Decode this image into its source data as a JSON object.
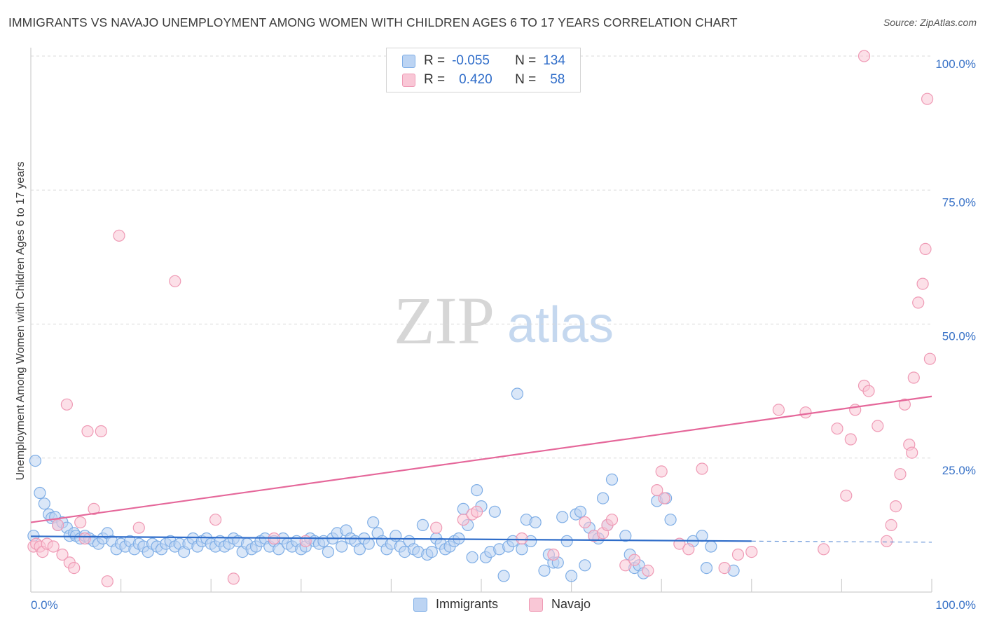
{
  "title": "IMMIGRANTS VS NAVAJO UNEMPLOYMENT AMONG WOMEN WITH CHILDREN AGES 6 TO 17 YEARS CORRELATION CHART",
  "source": "Source: ZipAtlas.com",
  "watermark": {
    "zip": "ZIP",
    "atlas": "atlas"
  },
  "legend_top": {
    "r_label": "R =",
    "n_label": "N =",
    "rows": [
      {
        "swatch": "blue",
        "r": "-0.055",
        "n": "134"
      },
      {
        "swatch": "pink",
        "r": "0.420",
        "n": "58"
      }
    ]
  },
  "legend_bottom": [
    {
      "swatch": "blue",
      "label": "Immigrants"
    },
    {
      "swatch": "pink",
      "label": "Navajo"
    }
  ],
  "colors": {
    "blue_fill": "#bcd4f3",
    "blue_stroke": "#7faee6",
    "blue_line": "#2e6cc9",
    "pink_fill": "#f9c7d6",
    "pink_stroke": "#ef9ab5",
    "pink_line": "#e5679a",
    "axis_text": "#3b74c8",
    "grid": "#d8d8d8"
  },
  "chart_data": {
    "type": "scatter",
    "title": "IMMIGRANTS VS NAVAJO UNEMPLOYMENT AMONG WOMEN WITH CHILDREN AGES 6 TO 17 YEARS CORRELATION CHART",
    "xlabel": "",
    "ylabel": "Unemployment Among Women with Children Ages 6 to 17 years",
    "xlim": [
      0,
      100
    ],
    "ylim": [
      0,
      102
    ],
    "x_tick_labels": [
      {
        "value": 0,
        "label": "0.0%"
      },
      {
        "value": 100,
        "label": "100.0%"
      }
    ],
    "y_tick_labels": [
      {
        "value": 25,
        "label": "25.0%"
      },
      {
        "value": 50,
        "label": "50.0%"
      },
      {
        "value": 75,
        "label": "75.0%"
      },
      {
        "value": 100,
        "label": "100.0%"
      }
    ],
    "x_minor_ticks": [
      10,
      20,
      30,
      40,
      50,
      60,
      70,
      80,
      90
    ],
    "grid": true,
    "series": [
      {
        "name": "Immigrants",
        "color": "#7faee6",
        "trend": {
          "x": [
            0,
            80
          ],
          "y": [
            10.4,
            9.5
          ],
          "dash_to_x": 100,
          "dash_y": 9.3
        },
        "points": [
          [
            0.3,
            10.5
          ],
          [
            0.5,
            24.5
          ],
          [
            1.0,
            18.5
          ],
          [
            1.5,
            16.5
          ],
          [
            2.0,
            14.5
          ],
          [
            2.3,
            13.8
          ],
          [
            2.7,
            14.0
          ],
          [
            3.0,
            12.5
          ],
          [
            3.5,
            13.0
          ],
          [
            4.0,
            12.0
          ],
          [
            4.3,
            10.5
          ],
          [
            4.8,
            11.0
          ],
          [
            5.0,
            10.5
          ],
          [
            5.5,
            10.0
          ],
          [
            6.0,
            10.5
          ],
          [
            6.5,
            10.0
          ],
          [
            7.0,
            9.5
          ],
          [
            7.5,
            9.0
          ],
          [
            8.0,
            10.0
          ],
          [
            8.5,
            11.0
          ],
          [
            9.0,
            9.5
          ],
          [
            9.5,
            8.0
          ],
          [
            10.0,
            9.0
          ],
          [
            10.5,
            8.5
          ],
          [
            11.0,
            9.5
          ],
          [
            11.5,
            8.0
          ],
          [
            12.0,
            9.0
          ],
          [
            12.5,
            8.5
          ],
          [
            13.0,
            7.5
          ],
          [
            13.5,
            9.0
          ],
          [
            14.0,
            8.5
          ],
          [
            14.5,
            8.0
          ],
          [
            15.0,
            9.0
          ],
          [
            15.5,
            9.5
          ],
          [
            16.0,
            8.5
          ],
          [
            16.5,
            9.0
          ],
          [
            17.0,
            7.5
          ],
          [
            17.5,
            9.0
          ],
          [
            18.0,
            10.0
          ],
          [
            18.5,
            8.5
          ],
          [
            19.0,
            9.5
          ],
          [
            19.5,
            10.0
          ],
          [
            20.0,
            9.0
          ],
          [
            20.5,
            8.5
          ],
          [
            21.0,
            9.5
          ],
          [
            21.5,
            8.5
          ],
          [
            22.0,
            9.0
          ],
          [
            22.5,
            10.0
          ],
          [
            23.0,
            9.5
          ],
          [
            23.5,
            7.5
          ],
          [
            24.0,
            9.0
          ],
          [
            24.5,
            8.0
          ],
          [
            25.0,
            8.5
          ],
          [
            25.5,
            9.5
          ],
          [
            26.0,
            10.0
          ],
          [
            26.5,
            8.5
          ],
          [
            27.0,
            9.5
          ],
          [
            27.5,
            8.0
          ],
          [
            28.0,
            10.0
          ],
          [
            28.5,
            9.0
          ],
          [
            29.0,
            8.5
          ],
          [
            29.5,
            9.5
          ],
          [
            30.0,
            8.0
          ],
          [
            30.5,
            8.5
          ],
          [
            31.0,
            10.0
          ],
          [
            31.5,
            9.5
          ],
          [
            32.0,
            9.0
          ],
          [
            32.5,
            9.5
          ],
          [
            33.0,
            7.5
          ],
          [
            33.5,
            10.0
          ],
          [
            34.0,
            11.0
          ],
          [
            34.5,
            8.5
          ],
          [
            35.0,
            11.5
          ],
          [
            35.5,
            10.0
          ],
          [
            36.0,
            9.5
          ],
          [
            36.5,
            8.0
          ],
          [
            37.0,
            10.0
          ],
          [
            37.5,
            9.0
          ],
          [
            38.0,
            13.0
          ],
          [
            38.5,
            11.0
          ],
          [
            39.0,
            9.5
          ],
          [
            39.5,
            8.0
          ],
          [
            40.0,
            9.0
          ],
          [
            40.5,
            10.5
          ],
          [
            41.0,
            8.5
          ],
          [
            41.5,
            7.5
          ],
          [
            42.0,
            9.5
          ],
          [
            42.5,
            8.0
          ],
          [
            43.0,
            7.5
          ],
          [
            43.5,
            12.5
          ],
          [
            44.0,
            7.0
          ],
          [
            44.5,
            7.5
          ],
          [
            45.0,
            10.0
          ],
          [
            45.5,
            9.0
          ],
          [
            46.0,
            8.0
          ],
          [
            46.5,
            8.5
          ],
          [
            47.0,
            9.5
          ],
          [
            47.5,
            10.0
          ],
          [
            48.0,
            15.5
          ],
          [
            48.5,
            12.5
          ],
          [
            49.0,
            6.5
          ],
          [
            49.5,
            19.0
          ],
          [
            50.0,
            16.0
          ],
          [
            50.5,
            6.5
          ],
          [
            51.0,
            7.5
          ],
          [
            51.5,
            15.0
          ],
          [
            52.0,
            8.0
          ],
          [
            52.5,
            3.0
          ],
          [
            53.0,
            8.5
          ],
          [
            53.5,
            9.5
          ],
          [
            54.0,
            37.0
          ],
          [
            54.5,
            8.0
          ],
          [
            55.0,
            13.5
          ],
          [
            55.5,
            9.5
          ],
          [
            56.0,
            13.0
          ],
          [
            57.0,
            4.0
          ],
          [
            57.5,
            7.0
          ],
          [
            58.0,
            5.5
          ],
          [
            58.5,
            5.5
          ],
          [
            59.0,
            14.0
          ],
          [
            59.5,
            9.5
          ],
          [
            60.0,
            3.0
          ],
          [
            60.5,
            14.5
          ],
          [
            61.0,
            15.0
          ],
          [
            61.5,
            5.0
          ],
          [
            62.0,
            12.0
          ],
          [
            62.5,
            10.5
          ],
          [
            63.0,
            10.0
          ],
          [
            63.5,
            17.5
          ],
          [
            64.0,
            12.5
          ],
          [
            64.5,
            21.0
          ],
          [
            66.0,
            10.5
          ],
          [
            66.5,
            7.0
          ],
          [
            67.0,
            4.5
          ],
          [
            67.5,
            5.0
          ],
          [
            68.0,
            3.5
          ],
          [
            69.5,
            17.0
          ],
          [
            70.5,
            17.5
          ],
          [
            71.0,
            13.5
          ],
          [
            73.5,
            9.5
          ],
          [
            74.5,
            10.5
          ],
          [
            75.0,
            4.5
          ],
          [
            75.5,
            8.5
          ],
          [
            78.0,
            4.0
          ]
        ]
      },
      {
        "name": "Navajo",
        "color": "#ef9ab5",
        "trend": {
          "x": [
            0,
            100
          ],
          "y": [
            13.0,
            36.5
          ]
        },
        "points": [
          [
            0.3,
            8.5
          ],
          [
            0.6,
            9.0
          ],
          [
            1.0,
            8.5
          ],
          [
            1.3,
            7.5
          ],
          [
            1.8,
            9.0
          ],
          [
            2.5,
            8.5
          ],
          [
            3.0,
            12.5
          ],
          [
            3.5,
            7.0
          ],
          [
            4.0,
            35.0
          ],
          [
            4.3,
            5.5
          ],
          [
            4.8,
            4.5
          ],
          [
            5.5,
            13.0
          ],
          [
            6.0,
            10.0
          ],
          [
            6.3,
            30.0
          ],
          [
            7.0,
            15.5
          ],
          [
            7.8,
            30.0
          ],
          [
            8.5,
            2.0
          ],
          [
            9.8,
            66.5
          ],
          [
            12.0,
            12.0
          ],
          [
            16.0,
            58.0
          ],
          [
            20.5,
            13.5
          ],
          [
            22.5,
            2.5
          ],
          [
            27.0,
            10.0
          ],
          [
            30.5,
            9.5
          ],
          [
            45.0,
            12.0
          ],
          [
            48.0,
            13.5
          ],
          [
            49.0,
            14.5
          ],
          [
            49.5,
            15.0
          ],
          [
            54.5,
            10.0
          ],
          [
            58.0,
            7.0
          ],
          [
            61.5,
            13.0
          ],
          [
            62.5,
            10.5
          ],
          [
            63.5,
            11.0
          ],
          [
            64.0,
            12.5
          ],
          [
            64.5,
            13.5
          ],
          [
            66.0,
            5.0
          ],
          [
            67.0,
            6.0
          ],
          [
            68.5,
            4.0
          ],
          [
            69.5,
            19.0
          ],
          [
            70.0,
            22.5
          ],
          [
            70.3,
            17.5
          ],
          [
            72.0,
            9.0
          ],
          [
            73.0,
            8.0
          ],
          [
            74.5,
            23.0
          ],
          [
            77.0,
            4.5
          ],
          [
            78.5,
            7.0
          ],
          [
            80.0,
            7.5
          ],
          [
            83.0,
            34.0
          ],
          [
            86.0,
            33.5
          ],
          [
            88.0,
            8.0
          ],
          [
            89.5,
            30.5
          ],
          [
            90.5,
            18.0
          ],
          [
            91.0,
            28.5
          ],
          [
            91.5,
            34.0
          ],
          [
            92.5,
            38.5
          ],
          [
            93.0,
            37.5
          ],
          [
            94.0,
            31.0
          ],
          [
            95.0,
            9.5
          ],
          [
            95.5,
            12.5
          ],
          [
            96.0,
            16.0
          ],
          [
            96.5,
            22.0
          ],
          [
            97.0,
            35.0
          ],
          [
            97.5,
            27.5
          ],
          [
            97.8,
            26.0
          ],
          [
            98.0,
            40.0
          ],
          [
            98.5,
            54.0
          ],
          [
            99.0,
            57.5
          ],
          [
            99.3,
            64.0
          ],
          [
            99.5,
            92.0
          ],
          [
            99.8,
            43.5
          ],
          [
            92.5,
            100.0
          ]
        ]
      }
    ]
  },
  "axis": {
    "x_left_label": "0.0%",
    "x_right_label": "100.0%"
  }
}
